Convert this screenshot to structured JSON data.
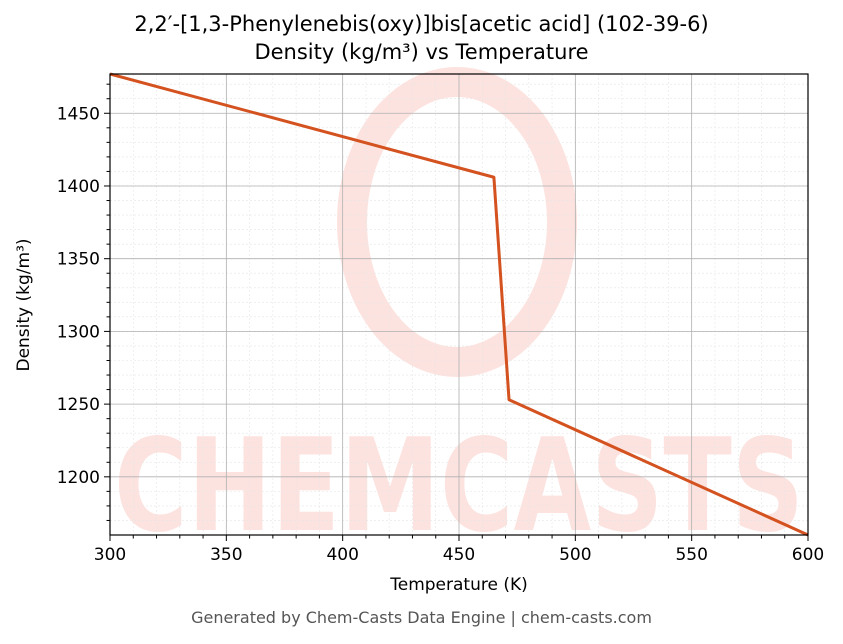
{
  "chart_data": {
    "type": "line",
    "title": "2,2′-[1,3-Phenylenebis(oxy)]bis[acetic acid] (102-39-6)",
    "subtitle": "Density (kg/m³) vs Temperature",
    "xlabel": "Temperature (K)",
    "ylabel": "Density (kg/m³)",
    "xlim": [
      300,
      600
    ],
    "ylim": [
      1160,
      1477
    ],
    "xticks": [
      300,
      350,
      400,
      450,
      500,
      550,
      600
    ],
    "yticks": [
      1200,
      1250,
      1300,
      1350,
      1400,
      1450
    ],
    "grid": true,
    "series": [
      {
        "color": "#d4521f",
        "x": [
          300,
          465,
          471.5,
          600
        ],
        "y": [
          1477,
          1406,
          1253,
          1160
        ]
      }
    ],
    "watermark": "CHEMCASTS"
  },
  "footer": "Generated by Chem-Casts Data Engine | chem-casts.com"
}
